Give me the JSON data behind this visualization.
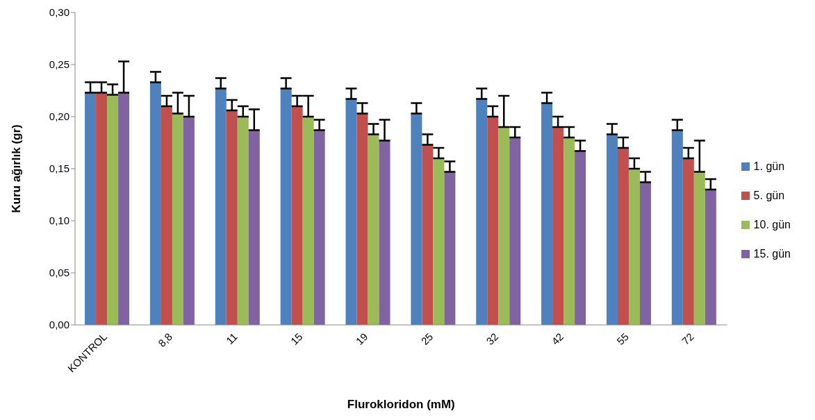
{
  "chart_data": {
    "type": "bar",
    "xlabel": "Flurokloridon (mM)",
    "ylabel": "Kuru ağırlık (gr)",
    "categories": [
      "KONTROL",
      "8,8",
      "11",
      "15",
      "19",
      "25",
      "32",
      "42",
      "55",
      "72"
    ],
    "series": [
      {
        "name": "1. gün",
        "color": "#4f81bd",
        "values": [
          0.223,
          0.233,
          0.227,
          0.227,
          0.217,
          0.203,
          0.217,
          0.213,
          0.183,
          0.187
        ],
        "errors": [
          [
            0.223,
            0.233
          ],
          [
            0.233,
            0.243
          ],
          [
            0.227,
            0.237
          ],
          [
            0.227,
            0.237
          ],
          [
            0.217,
            0.227
          ],
          [
            0.203,
            0.213
          ],
          [
            0.217,
            0.227
          ],
          [
            0.213,
            0.223
          ],
          [
            0.183,
            0.193
          ],
          [
            0.187,
            0.197
          ]
        ]
      },
      {
        "name": "5. gün",
        "color": "#c0504d",
        "values": [
          0.223,
          0.21,
          0.206,
          0.21,
          0.203,
          0.173,
          0.2,
          0.19,
          0.17,
          0.16
        ],
        "errors": [
          [
            0.223,
            0.233
          ],
          [
            0.21,
            0.22
          ],
          [
            0.206,
            0.216
          ],
          [
            0.21,
            0.22
          ],
          [
            0.203,
            0.213
          ],
          [
            0.173,
            0.183
          ],
          [
            0.2,
            0.21
          ],
          [
            0.19,
            0.2
          ],
          [
            0.17,
            0.18
          ],
          [
            0.16,
            0.17
          ]
        ]
      },
      {
        "name": "10. gün",
        "color": "#9bbb59",
        "values": [
          0.221,
          0.203,
          0.2,
          0.2,
          0.183,
          0.16,
          0.19,
          0.18,
          0.15,
          0.147
        ],
        "errors": [
          [
            0.221,
            0.231
          ],
          [
            0.203,
            0.223
          ],
          [
            0.2,
            0.21
          ],
          [
            0.2,
            0.22
          ],
          [
            0.183,
            0.193
          ],
          [
            0.16,
            0.17
          ],
          [
            0.19,
            0.22
          ],
          [
            0.18,
            0.19
          ],
          [
            0.15,
            0.16
          ],
          [
            0.147,
            0.177
          ]
        ]
      },
      {
        "name": "15. gün",
        "color": "#8064a2",
        "values": [
          0.223,
          0.2,
          0.187,
          0.187,
          0.177,
          0.147,
          0.18,
          0.167,
          0.137,
          0.13
        ],
        "errors": [
          [
            0.223,
            0.253
          ],
          [
            0.2,
            0.22
          ],
          [
            0.187,
            0.207
          ],
          [
            0.187,
            0.197
          ],
          [
            0.177,
            0.197
          ],
          [
            0.147,
            0.157
          ],
          [
            0.18,
            0.19
          ],
          [
            0.167,
            0.177
          ],
          [
            0.137,
            0.147
          ],
          [
            0.13,
            0.14
          ]
        ]
      }
    ],
    "ylim": [
      0,
      0.3
    ],
    "yticks": [
      {
        "value": 0,
        "label": "0,00"
      },
      {
        "value": 0.05,
        "label": "0,05"
      },
      {
        "value": 0.1,
        "label": "0,10"
      },
      {
        "value": 0.15,
        "label": "0,15"
      },
      {
        "value": 0.2,
        "label": "0,20"
      },
      {
        "value": 0.25,
        "label": "0,25"
      },
      {
        "value": 0.3,
        "label": "0,30"
      }
    ],
    "legend": "right",
    "grid": false
  }
}
